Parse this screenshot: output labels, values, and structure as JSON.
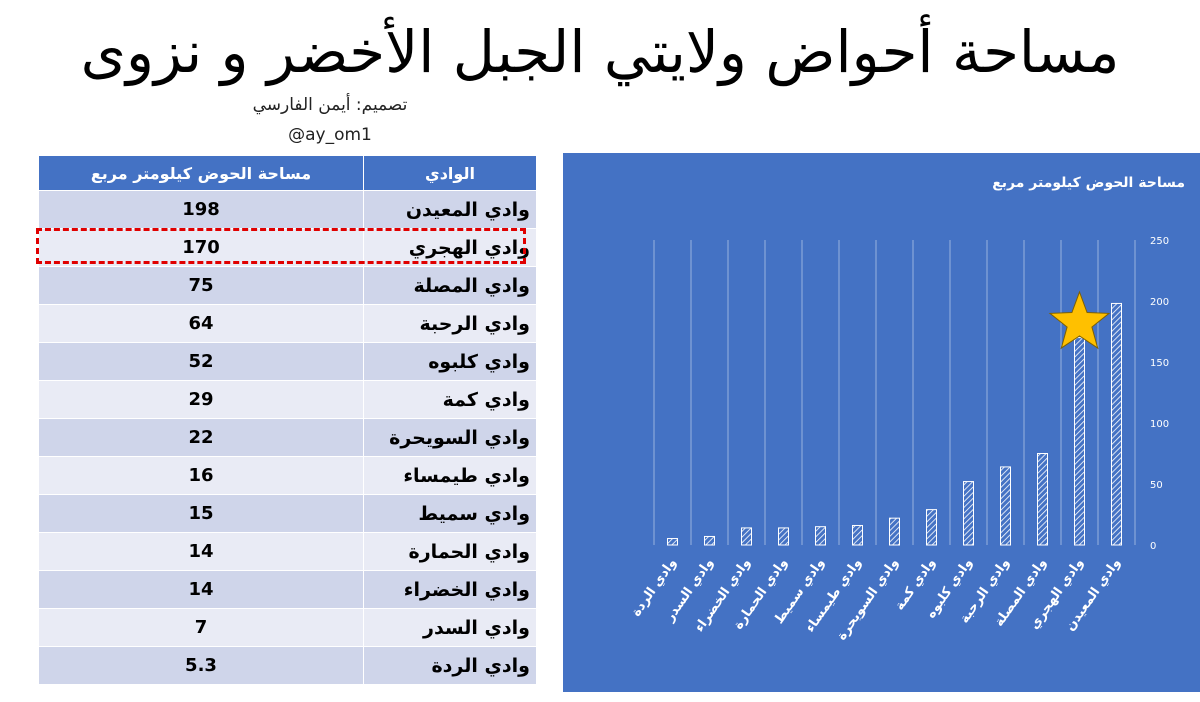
{
  "header": {
    "title": "مساحة أحواض ولايتي الجبل الأخضر و نزوى",
    "credit": "تصميم: أيمن الفارسي",
    "handle": "@ay_om1"
  },
  "table": {
    "columns": [
      "الوادي",
      "مساحة الحوض كيلومتر مربع"
    ],
    "rows": [
      [
        "وادي المعيدن",
        198
      ],
      [
        "وادي الهجري",
        170
      ],
      [
        "وادي المصلة",
        75
      ],
      [
        "وادي الرحبة",
        64
      ],
      [
        "وادي كلبوه",
        52
      ],
      [
        "وادي كمة",
        29
      ],
      [
        "وادي السويحرة",
        22
      ],
      [
        "وادي طيمساء",
        16
      ],
      [
        "وادي سميط",
        15
      ],
      [
        "وادي الحمارة",
        14
      ],
      [
        "وادي الخضراء",
        14
      ],
      [
        "وادي السدر",
        7
      ],
      [
        "وادي الردة",
        5.3
      ]
    ]
  },
  "chart_data": {
    "type": "bar",
    "title": "مساحة الحوض كيلومتر مربع",
    "categories": [
      "وادي الردة",
      "وادي السدر",
      "وادي الخضراء",
      "وادي الحمارة",
      "وادي سميط",
      "وادي طيمساء",
      "وادي السويحرة",
      "وادي كمة",
      "وادي كلبوه",
      "وادي الرحبة",
      "وادي المصلة",
      "وادي الهجري",
      "وادي المعيدن"
    ],
    "values": [
      5.3,
      7,
      14,
      14,
      15,
      16,
      22,
      29,
      52,
      64,
      75,
      170,
      198
    ],
    "color": "#ffffff",
    "background": "#4472c4",
    "ylim": [
      0,
      250
    ],
    "yticks": [
      0,
      50,
      100,
      150,
      200,
      250
    ],
    "grid": true
  }
}
